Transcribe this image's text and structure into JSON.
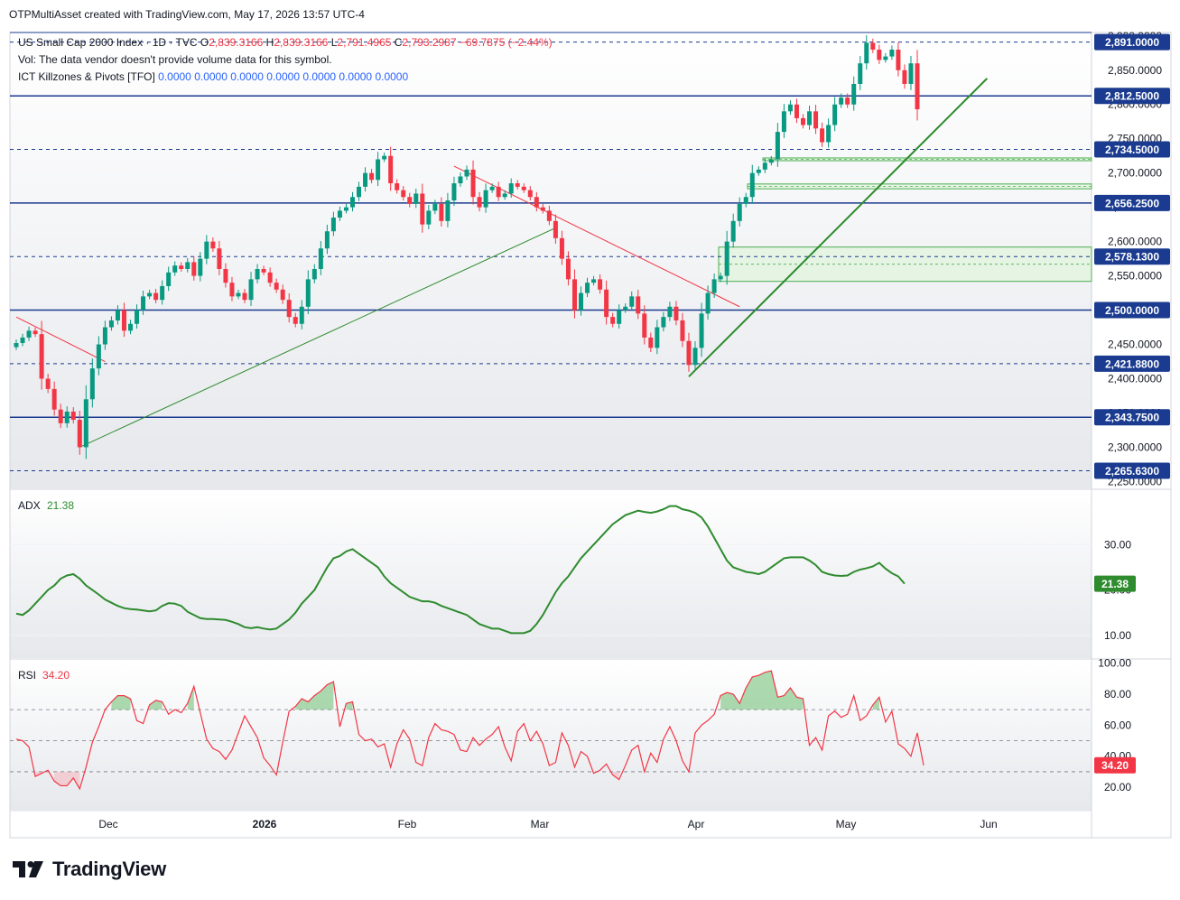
{
  "header": {
    "credit": "OTPMultiAsset created with TradingView.com, May 17, 2026 13:57 UTC-4"
  },
  "legend": {
    "symbol": "US Small Cap 2000 Index · 1D · TVC",
    "o_label": "O",
    "o_value": "2,839.3166",
    "h_label": "H",
    "h_value": "2,839.3166",
    "l_label": "L",
    "l_value": "2,791.4965",
    "c_label": "C",
    "c_value": "2,793.2987",
    "change": "−69.7875 (−2.44%)",
    "vol_note": "Vol: The data vendor doesn't provide volume data for this symbol.",
    "indicator_name": "ICT Killzones & Pivots [TFO]",
    "indicator_values": [
      "0.0000",
      "0.0000",
      "0.0000",
      "0.0000",
      "0.0000",
      "0.0000",
      "0.0000"
    ]
  },
  "currency": "USD",
  "footer": {
    "brand": "TradingView"
  },
  "colors": {
    "up": "#089981",
    "down": "#f23645",
    "level": "#1a3b8f",
    "adx": "#2e8b2e",
    "rsi": "#f23645",
    "trend_green": "#2e8b2e",
    "trend_red": "#f23645",
    "fvg_fill": "#e6f4e4",
    "fvg_stroke": "#4caf50"
  },
  "chart_data": [
    {
      "type": "candlestick",
      "title": "US Small Cap 2000 Index · 1D · TVC",
      "ylim": [
        2240,
        2905
      ],
      "y_ticks": [
        2250,
        2300,
        2350,
        2400,
        2450,
        2500,
        2550,
        2600,
        2650,
        2700,
        2750,
        2800,
        2850,
        2900
      ],
      "x_ticks": [
        "Dec",
        "2026",
        "Feb",
        "Mar",
        "Apr",
        "May",
        "Jun"
      ],
      "levels": [
        {
          "value": 2891.0,
          "label": "2,891.0000",
          "style": "dashed"
        },
        {
          "value": 2812.5,
          "label": "2,812.5000",
          "style": "solid"
        },
        {
          "value": 2734.5,
          "label": "2,734.5000",
          "style": "dashed"
        },
        {
          "value": 2656.25,
          "label": "2,656.2500",
          "style": "solid"
        },
        {
          "value": 2578.13,
          "label": "2,578.1300",
          "style": "dashed"
        },
        {
          "value": 2500.0,
          "label": "2,500.0000",
          "style": "solid"
        },
        {
          "value": 2421.88,
          "label": "2,421.8800",
          "style": "dashed"
        },
        {
          "value": 2343.75,
          "label": "2,343.7500",
          "style": "solid"
        },
        {
          "value": 2265.63,
          "label": "2,265.6300",
          "style": "dashed"
        }
      ],
      "closes": [
        2452,
        2460,
        2470,
        2465,
        2400,
        2385,
        2355,
        2335,
        2352,
        2340,
        2300,
        2370,
        2415,
        2450,
        2475,
        2485,
        2500,
        2470,
        2480,
        2500,
        2520,
        2525,
        2515,
        2535,
        2555,
        2565,
        2560,
        2570,
        2550,
        2575,
        2600,
        2590,
        2560,
        2540,
        2520,
        2525,
        2515,
        2545,
        2560,
        2555,
        2540,
        2530,
        2515,
        2490,
        2480,
        2505,
        2545,
        2560,
        2590,
        2615,
        2635,
        2645,
        2650,
        2665,
        2680,
        2700,
        2690,
        2720,
        2725,
        2685,
        2675,
        2665,
        2655,
        2670,
        2625,
        2645,
        2655,
        2630,
        2660,
        2685,
        2695,
        2705,
        2665,
        2650,
        2675,
        2680,
        2665,
        2670,
        2685,
        2680,
        2675,
        2665,
        2650,
        2645,
        2630,
        2605,
        2575,
        2545,
        2500,
        2525,
        2540,
        2545,
        2530,
        2490,
        2480,
        2500,
        2505,
        2520,
        2495,
        2460,
        2445,
        2475,
        2490,
        2505,
        2485,
        2455,
        2420,
        2445,
        2495,
        2525,
        2545,
        2550,
        2600,
        2630,
        2655,
        2665,
        2700,
        2705,
        2715,
        2720,
        2760,
        2790,
        2800,
        2780,
        2770,
        2790,
        2765,
        2745,
        2770,
        2800,
        2810,
        2800,
        2830,
        2860,
        2890,
        2880,
        2865,
        2870,
        2880,
        2850,
        2830,
        2860,
        2793
      ]
    },
    {
      "type": "line",
      "name": "ADX",
      "value_label": "21.38",
      "ylim": [
        5,
        42
      ],
      "y_ticks": [
        10,
        20,
        30
      ],
      "values": [
        14.8,
        14.5,
        15.5,
        17,
        18.5,
        20,
        21,
        22.5,
        23.2,
        23.5,
        22.5,
        21,
        20,
        19,
        17.9,
        17.2,
        16.5,
        16,
        15.8,
        15.7,
        15.5,
        15.3,
        15.5,
        16.5,
        17.1,
        17.0,
        16.5,
        15.2,
        14.5,
        13.8,
        13.6,
        13.6,
        13.5,
        13.4,
        13.0,
        12.5,
        11.8,
        11.6,
        11.8,
        11.5,
        11.3,
        11.5,
        12.5,
        13.5,
        15,
        17,
        18.5,
        20,
        22.5,
        25,
        27,
        27.5,
        28.5,
        29,
        28,
        27,
        26,
        25,
        23,
        21.5,
        20.5,
        19.5,
        18.5,
        18,
        17.5,
        17.5,
        17.2,
        16.5,
        16,
        15.5,
        15,
        14.5,
        13.5,
        12.5,
        12,
        11.5,
        11.5,
        11,
        10.5,
        10.5,
        10.5,
        11,
        12.5,
        14.5,
        17,
        19.5,
        21.5,
        23,
        25,
        27,
        28.5,
        30,
        31.5,
        33,
        34.5,
        35.5,
        36.5,
        37,
        37.5,
        37.2,
        37,
        37.3,
        37.8,
        38.5,
        38.5,
        37.8,
        37.5,
        37,
        36,
        34,
        31.5,
        29,
        26.5,
        25,
        24.5,
        24,
        23.8,
        23.5,
        24,
        25,
        26,
        27,
        27.2,
        27.2,
        27.2,
        26.5,
        25.5,
        24,
        23.5,
        23.2,
        23.1,
        23.2,
        24,
        24.5,
        24.8,
        25.2,
        26,
        24.7,
        23.7,
        23,
        21.38
      ]
    },
    {
      "type": "line",
      "name": "RSI",
      "value_label": "34.20",
      "ylim": [
        5,
        102
      ],
      "y_ticks": [
        20,
        40,
        60,
        80,
        100
      ],
      "levels": [
        70,
        50,
        30
      ],
      "values": [
        51,
        50,
        46,
        27,
        29,
        31,
        24,
        21,
        21,
        26,
        19,
        33,
        49,
        59,
        70,
        75,
        79,
        79,
        77,
        63,
        61,
        73,
        76,
        75,
        67,
        70,
        68,
        74,
        85,
        68,
        51,
        45,
        43,
        38,
        44,
        55,
        66,
        59,
        52,
        39,
        34,
        28,
        49,
        69,
        72,
        77,
        75,
        79,
        82,
        86,
        88,
        59,
        74,
        75,
        54,
        50,
        51,
        46,
        48,
        33,
        48,
        57,
        51,
        36,
        34,
        52,
        61,
        57,
        56,
        54,
        44,
        43,
        52,
        47,
        51,
        54,
        59,
        46,
        37,
        56,
        61,
        50,
        56,
        48,
        34,
        36,
        55,
        47,
        33,
        43,
        40,
        29,
        31,
        35,
        28,
        25,
        34,
        44,
        47,
        30,
        42,
        36,
        51,
        59,
        50,
        37,
        30,
        55,
        60,
        63,
        67,
        79,
        81,
        80,
        74,
        84,
        91,
        92,
        94,
        95,
        78,
        79,
        84,
        78,
        77,
        47,
        52,
        44,
        66,
        69,
        65,
        67,
        79,
        63,
        66,
        73,
        78,
        62,
        69,
        48,
        45,
        40,
        55,
        34.2
      ]
    }
  ]
}
